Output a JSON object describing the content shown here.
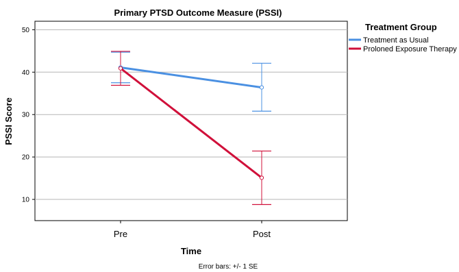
{
  "chart_data": {
    "type": "line",
    "title": "Primary PTSD Outcome Measure (PSSI)",
    "xlabel": "Time",
    "ylabel": "PSSI Score",
    "categories": [
      "Pre",
      "Post"
    ],
    "ylim": [
      5,
      52
    ],
    "yticks": [
      10,
      20,
      30,
      40,
      50
    ],
    "grid": true,
    "legend": {
      "title": "Treatment Group",
      "placement": "right"
    },
    "series": [
      {
        "name": "Treatment as Usual",
        "color": "#4a90e2",
        "values": [
          41.1,
          36.4
        ],
        "error_low": [
          37.5,
          30.8
        ],
        "error_high": [
          44.7,
          42.1
        ]
      },
      {
        "name": "Proloned Exposure Therapy",
        "color": "#d0103a",
        "values": [
          40.9,
          15.1
        ],
        "error_low": [
          36.9,
          8.8
        ],
        "error_high": [
          44.9,
          21.4
        ]
      }
    ],
    "note": "Error bars: +/- 1 SE"
  }
}
